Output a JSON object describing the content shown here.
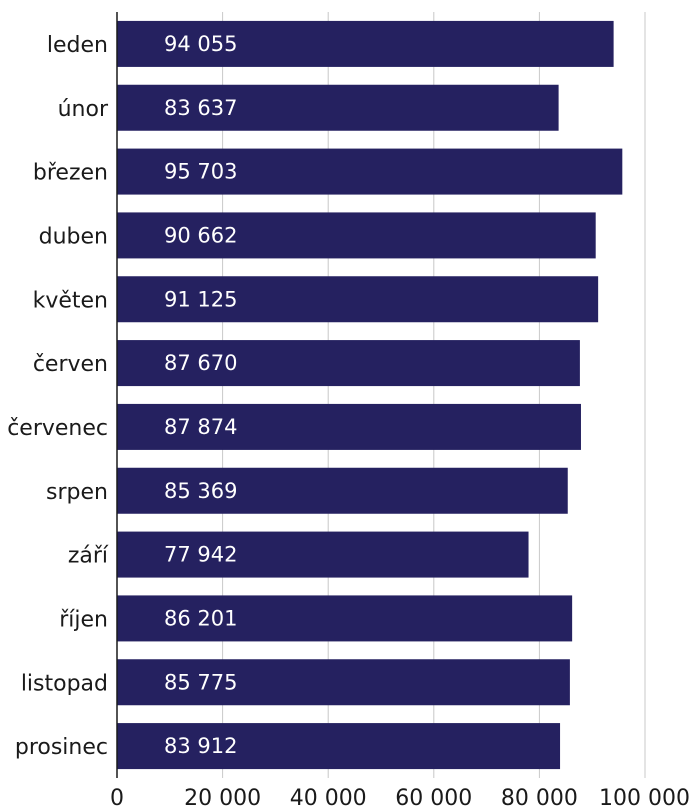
{
  "chart_data": {
    "type": "bar",
    "orientation": "horizontal",
    "title": "",
    "xlabel": "",
    "ylabel": "",
    "categories": [
      "leden",
      "únor",
      "březen",
      "duben",
      "květen",
      "červen",
      "červenec",
      "srpen",
      "září",
      "říjen",
      "listopad",
      "prosinec"
    ],
    "values": [
      94055,
      83637,
      95703,
      90662,
      91125,
      87670,
      87874,
      85369,
      77942,
      86201,
      85775,
      83912
    ],
    "data_labels": [
      "94 055",
      "83 637",
      "95 703",
      "90 662",
      "91 125",
      "87 670",
      "87 874",
      "85 369",
      "77 942",
      "86 201",
      "85 775",
      "83 912"
    ],
    "xlim": [
      0,
      100000
    ],
    "x_ticks": [
      0,
      20000,
      40000,
      60000,
      80000,
      100000
    ],
    "x_tick_labels": [
      "0",
      "20 000",
      "40 000",
      "60 000",
      "80 000",
      "100 000"
    ],
    "grid": true,
    "legend": "none",
    "bar_color": "#252160",
    "label_color": "#ffffff"
  }
}
